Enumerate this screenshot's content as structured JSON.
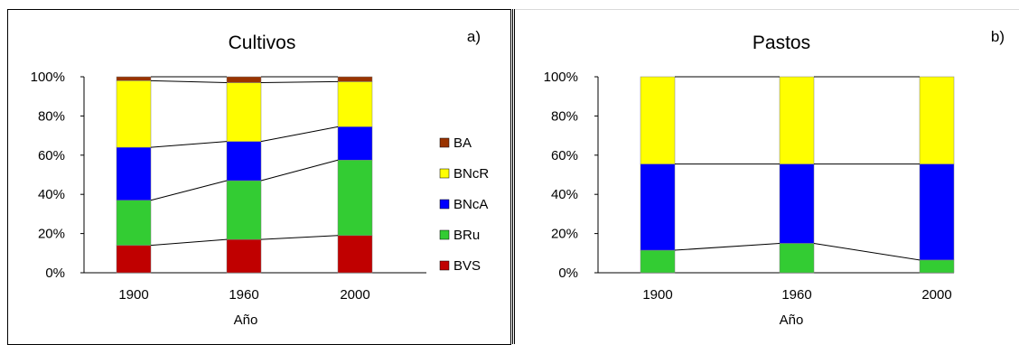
{
  "chart_data": [
    {
      "type": "bar",
      "stacked": true,
      "percent": true,
      "title": "Cultivos",
      "panel_label": "a)",
      "xlabel": "Año",
      "ylabel": "",
      "ylim": [
        0,
        100
      ],
      "yticks": [
        "0%",
        "20%",
        "40%",
        "60%",
        "80%",
        "100%"
      ],
      "categories": [
        "1900",
        "1960",
        "2000"
      ],
      "series": [
        {
          "name": "BVS",
          "color": "#c00000",
          "values": [
            14,
            17,
            19
          ]
        },
        {
          "name": "BRu",
          "color": "#33cc33",
          "values": [
            23,
            30,
            38.5
          ]
        },
        {
          "name": "BNcA",
          "color": "#0000ff",
          "values": [
            27,
            20,
            17
          ]
        },
        {
          "name": "BNcR",
          "color": "#ffff00",
          "values": [
            34,
            30,
            23
          ]
        },
        {
          "name": "BA",
          "color": "#993300",
          "values": [
            2,
            3,
            2.5
          ]
        }
      ],
      "legend": {
        "position": "right",
        "order": [
          "BA",
          "BNcR",
          "BNcA",
          "BRu",
          "BVS"
        ]
      },
      "connector_lines": true,
      "grid": false
    },
    {
      "type": "bar",
      "stacked": true,
      "percent": true,
      "title": "Pastos",
      "panel_label": "b)",
      "xlabel": "Año",
      "ylabel": "",
      "ylim": [
        0,
        100
      ],
      "yticks": [
        "0%",
        "20%",
        "40%",
        "60%",
        "80%",
        "100%"
      ],
      "categories": [
        "1900",
        "1960",
        "2000"
      ],
      "series": [
        {
          "name": "BRu",
          "color": "#33cc33",
          "values": [
            11.5,
            15,
            6.5
          ]
        },
        {
          "name": "BNcA",
          "color": "#0000ff",
          "values": [
            44,
            40.5,
            49
          ]
        },
        {
          "name": "BNcR",
          "color": "#ffff00",
          "values": [
            44.5,
            44.5,
            44.5
          ]
        }
      ],
      "connector_lines": true,
      "grid": false
    }
  ]
}
